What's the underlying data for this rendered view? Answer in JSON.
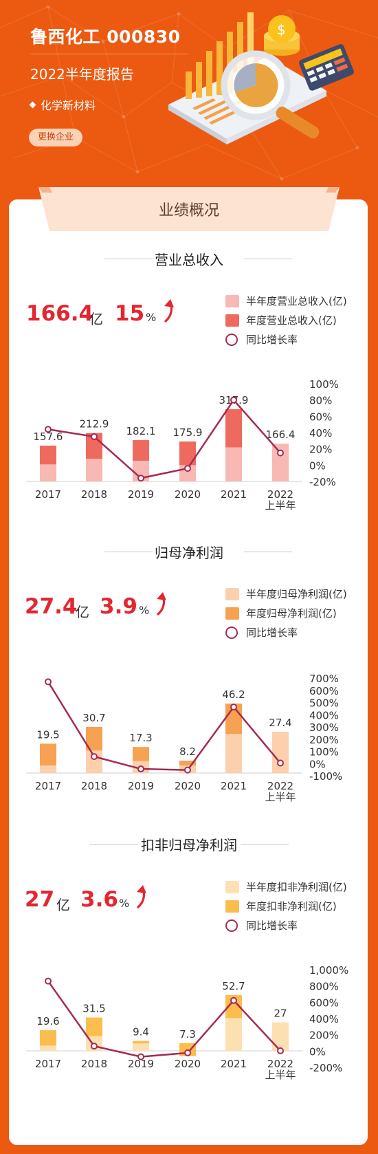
{
  "header": {
    "title": "鲁西化工 000830",
    "subtitle": "2022半年度报告",
    "sector": "化学新材料",
    "change_button": "更换企业"
  },
  "section_banner": "业绩概况",
  "colors": {
    "background": "#ec5a12",
    "kpi_red": "#e3262f",
    "line": "#a52a52"
  },
  "charts": [
    {
      "id": "revenue",
      "title": "营业总收入",
      "kpi_value": "166.4",
      "kpi_unit": "亿",
      "kpi_growth": "15",
      "kpi_growth_unit": "%",
      "legend": {
        "half": "半年度营业总收入(亿)",
        "annual": "年度营业总收入(亿)",
        "growth": "同比增长率"
      },
      "colors": {
        "half": "#f8b8b3",
        "annual": "#ef6a5e"
      }
    },
    {
      "id": "netprofit",
      "title": "归母净利润",
      "kpi_value": "27.4",
      "kpi_unit": "亿",
      "kpi_growth": "3.9",
      "kpi_growth_unit": "%",
      "legend": {
        "half": "半年度归母净利润(亿)",
        "annual": "年度归母净利润(亿)",
        "growth": "同比增长率"
      },
      "colors": {
        "half": "#fccfad",
        "annual": "#f7a152"
      }
    },
    {
      "id": "deducted",
      "title": "扣非归母净利润",
      "kpi_value": "27",
      "kpi_unit": "亿",
      "kpi_growth": "3.6",
      "kpi_growth_unit": "%",
      "legend": {
        "half": "半年度扣非净利润(亿)",
        "annual": "年度扣非净利润(亿)",
        "growth": "同比增长率"
      },
      "colors": {
        "half": "#fde0b2",
        "annual": "#fbbd4e"
      }
    }
  ],
  "chart_data": [
    {
      "type": "bar",
      "categories": [
        "2017",
        "2018",
        "2019",
        "2020",
        "2021",
        "2022\n上半年"
      ],
      "annual_values": [
        157.6,
        212.9,
        182.1,
        175.9,
        317.9,
        null
      ],
      "half_values": [
        75,
        100,
        91,
        72,
        150,
        166.4
      ],
      "value_labels": [
        "157.6",
        "212.9",
        "182.1",
        "175.9",
        "317.9",
        "166.4"
      ],
      "growth_rate": [
        44,
        35,
        -16,
        -4,
        80,
        15
      ],
      "y_right_ticks": [
        "100%",
        "80%",
        "60%",
        "40%",
        "20%",
        "0%",
        "-20%"
      ],
      "y_right_range": [
        -20,
        100
      ]
    },
    {
      "type": "bar",
      "categories": [
        "2017",
        "2018",
        "2019",
        "2020",
        "2021",
        "2022\n上半年"
      ],
      "annual_values": [
        19.5,
        30.7,
        17.3,
        8.2,
        46.2,
        null
      ],
      "half_values": [
        5,
        15,
        8,
        5,
        26,
        27.4
      ],
      "value_labels": [
        "19.5",
        "30.7",
        "17.3",
        "8.2",
        "46.2",
        "27.4"
      ],
      "growth_rate": [
        670,
        57,
        -44,
        -53,
        463,
        3.9
      ],
      "y_right_ticks": [
        "700%",
        "600%",
        "500%",
        "400%",
        "300%",
        "200%",
        "100%",
        "0%",
        "-100%"
      ],
      "y_right_range": [
        -100,
        700
      ]
    },
    {
      "type": "bar",
      "categories": [
        "2017",
        "2018",
        "2019",
        "2020",
        "2021",
        "2022\n上半年"
      ],
      "annual_values": [
        19.6,
        31.5,
        9.4,
        7.3,
        52.7,
        null
      ],
      "half_values": [
        5,
        14,
        7,
        -5,
        31,
        27
      ],
      "value_labels": [
        "19.6",
        "31.5",
        "9.4",
        "7.3",
        "52.7",
        "27"
      ],
      "growth_rate": [
        860,
        61,
        -70,
        -22,
        622,
        3.6
      ],
      "y_right_ticks": [
        "1,000%",
        "800%",
        "600%",
        "400%",
        "200%",
        "0%",
        "-200%"
      ],
      "y_right_range": [
        -200,
        1000
      ]
    }
  ]
}
